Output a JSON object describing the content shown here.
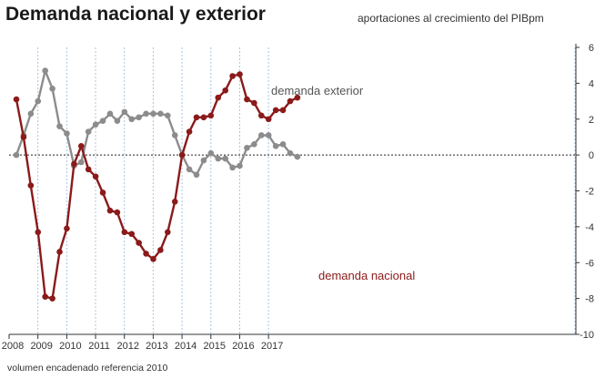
{
  "title": "Demanda nacional y exterior",
  "subtitle": "aportaciones al crecimiento del PIBpm",
  "footnote": "volumen encadenado referencia 2010",
  "chart_data": {
    "type": "line",
    "x_tick_labels": [
      "2008",
      "2009",
      "2010",
      "2011",
      "2012",
      "2013",
      "2014",
      "2015",
      "2016",
      "2017"
    ],
    "y_tick_labels": [
      "6",
      "4",
      "2",
      "0",
      "-2",
      "-4",
      "-6",
      "-8",
      "-10"
    ],
    "ylim": [
      -10,
      6
    ],
    "y_axis_side": "right",
    "grid": "vertical dashed lines at year boundaries",
    "zero_line": "dotted",
    "x": [
      "2008T1",
      "2008T2",
      "2008T3",
      "2008T4",
      "2009T1",
      "2009T2",
      "2009T3",
      "2009T4",
      "2010T1",
      "2010T2",
      "2010T3",
      "2010T4",
      "2011T1",
      "2011T2",
      "2011T3",
      "2011T4",
      "2012T1",
      "2012T2",
      "2012T3",
      "2012T4",
      "2013T1",
      "2013T2",
      "2013T3",
      "2013T4",
      "2014T1",
      "2014T2",
      "2014T3",
      "2014T4",
      "2015T1",
      "2015T2",
      "2015T3",
      "2015T4",
      "2016T1",
      "2016T2",
      "2016T3",
      "2016T4",
      "2017T1",
      "2017T2",
      "2017T3",
      "2017T4"
    ],
    "series": [
      {
        "name": "demanda exterior",
        "color": "#8c8c8c",
        "values": [
          0.0,
          1.1,
          2.3,
          3.0,
          4.7,
          3.7,
          1.6,
          1.2,
          -0.6,
          -0.4,
          1.3,
          1.7,
          1.9,
          2.3,
          1.9,
          2.4,
          2.0,
          2.1,
          2.3,
          2.3,
          2.3,
          2.2,
          1.1,
          0.0,
          -0.8,
          -1.1,
          -0.3,
          0.1,
          -0.2,
          -0.2,
          -0.7,
          -0.6,
          0.4,
          0.6,
          1.1,
          1.1,
          0.5,
          0.6,
          0.1,
          -0.1
        ]
      },
      {
        "name": "demanda nacional",
        "color": "#8b1a1a",
        "values": [
          3.1,
          1.0,
          -1.7,
          -4.3,
          -7.9,
          -8.0,
          -5.4,
          -4.1,
          -0.5,
          0.5,
          -0.8,
          -1.2,
          -2.1,
          -3.1,
          -3.2,
          -4.3,
          -4.4,
          -4.9,
          -5.5,
          -5.8,
          -5.3,
          -4.3,
          -2.6,
          0.0,
          1.3,
          2.1,
          2.1,
          2.2,
          3.2,
          3.6,
          4.4,
          4.5,
          3.1,
          2.9,
          2.2,
          2.0,
          2.5,
          2.5,
          3.0,
          3.2
        ]
      }
    ]
  }
}
